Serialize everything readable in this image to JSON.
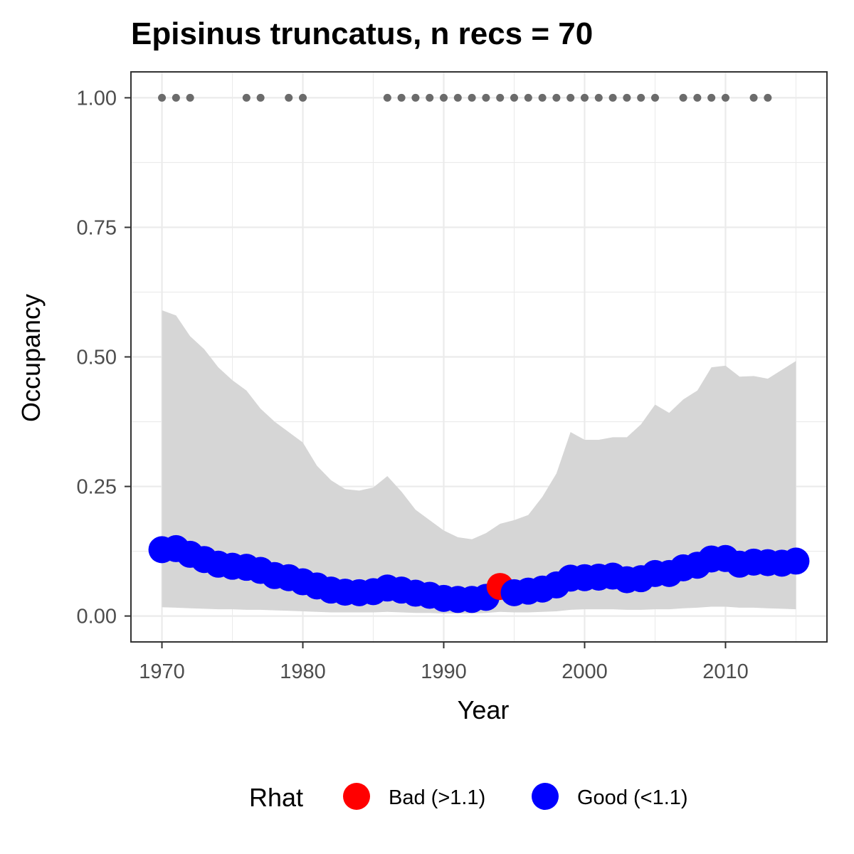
{
  "chart_data": {
    "type": "line",
    "title": "Episinus truncatus, n recs = 70",
    "xlabel": "Year",
    "ylabel": "Occupancy",
    "xlim": [
      1967.8,
      2017.2
    ],
    "ylim": [
      -0.05,
      1.05
    ],
    "x_ticks": [
      1970,
      1980,
      1990,
      2000,
      2010
    ],
    "x_tick_labels": [
      "1970",
      "1980",
      "1990",
      "2000",
      "2010"
    ],
    "y_ticks": [
      0,
      0.25,
      0.5,
      0.75,
      1.0
    ],
    "y_tick_labels": [
      "0.00",
      "0.25",
      "0.50",
      "0.75",
      "1.00"
    ],
    "grid": true,
    "legend_position": "bottom",
    "series": [
      {
        "name": "Occupancy",
        "x": [
          1970,
          1971,
          1972,
          1973,
          1974,
          1975,
          1976,
          1977,
          1978,
          1979,
          1980,
          1981,
          1982,
          1983,
          1984,
          1985,
          1986,
          1987,
          1988,
          1989,
          1990,
          1991,
          1992,
          1993,
          1994,
          1995,
          1996,
          1997,
          1998,
          1999,
          2000,
          2001,
          2002,
          2003,
          2004,
          2005,
          2006,
          2007,
          2008,
          2009,
          2010,
          2011,
          2012,
          2013,
          2014,
          2015
        ],
        "values": [
          0.128,
          0.13,
          0.119,
          0.109,
          0.1,
          0.096,
          0.094,
          0.088,
          0.078,
          0.074,
          0.066,
          0.058,
          0.05,
          0.046,
          0.045,
          0.047,
          0.054,
          0.05,
          0.044,
          0.04,
          0.034,
          0.032,
          0.032,
          0.036,
          0.057,
          0.045,
          0.048,
          0.052,
          0.06,
          0.073,
          0.074,
          0.075,
          0.077,
          0.07,
          0.072,
          0.082,
          0.082,
          0.093,
          0.098,
          0.11,
          0.111,
          0.1,
          0.104,
          0.103,
          0.102,
          0.106
        ],
        "rhat": [
          "Good",
          "Good",
          "Good",
          "Good",
          "Good",
          "Good",
          "Good",
          "Good",
          "Good",
          "Good",
          "Good",
          "Good",
          "Good",
          "Good",
          "Good",
          "Good",
          "Good",
          "Good",
          "Good",
          "Good",
          "Good",
          "Good",
          "Good",
          "Good",
          "Bad",
          "Good",
          "Good",
          "Good",
          "Good",
          "Good",
          "Good",
          "Good",
          "Good",
          "Good",
          "Good",
          "Good",
          "Good",
          "Good",
          "Good",
          "Good",
          "Good",
          "Good",
          "Good",
          "Good",
          "Good",
          "Good"
        ],
        "lower": [
          0.017,
          0.016,
          0.015,
          0.014,
          0.013,
          0.013,
          0.012,
          0.012,
          0.011,
          0.01,
          0.009,
          0.008,
          0.007,
          0.007,
          0.007,
          0.007,
          0.008,
          0.007,
          0.006,
          0.006,
          0.005,
          0.005,
          0.005,
          0.006,
          0.008,
          0.007,
          0.007,
          0.008,
          0.009,
          0.012,
          0.013,
          0.013,
          0.013,
          0.012,
          0.012,
          0.013,
          0.013,
          0.015,
          0.016,
          0.018,
          0.018,
          0.016,
          0.016,
          0.015,
          0.014,
          0.013
        ],
        "upper": [
          0.59,
          0.58,
          0.54,
          0.515,
          0.48,
          0.455,
          0.435,
          0.4,
          0.375,
          0.355,
          0.335,
          0.29,
          0.262,
          0.245,
          0.242,
          0.248,
          0.27,
          0.24,
          0.205,
          0.185,
          0.165,
          0.152,
          0.148,
          0.16,
          0.178,
          0.185,
          0.195,
          0.23,
          0.275,
          0.355,
          0.34,
          0.34,
          0.345,
          0.345,
          0.37,
          0.408,
          0.392,
          0.418,
          0.435,
          0.48,
          0.483,
          0.462,
          0.463,
          0.458,
          0.475,
          0.492
        ]
      }
    ],
    "records": {
      "name": "Records",
      "x": [
        1970,
        1971,
        1972,
        1976,
        1977,
        1979,
        1980,
        1986,
        1987,
        1988,
        1989,
        1990,
        1991,
        1992,
        1993,
        1994,
        1995,
        1996,
        1997,
        1998,
        1999,
        2000,
        2001,
        2002,
        2003,
        2004,
        2005,
        2007,
        2008,
        2009,
        2010,
        2012,
        2013
      ],
      "y": 1.0
    },
    "legend": {
      "title": "Rhat",
      "items": [
        {
          "label": "Bad (>1.1)",
          "color": "#ff0000"
        },
        {
          "label": "Good (<1.1)",
          "color": "#0000ff"
        }
      ]
    },
    "colors": {
      "bad": "#ff0000",
      "good": "#0000ff",
      "ribbon": "#d6d6d6",
      "records": "#6b6b6b",
      "grid": "#ebebeb",
      "panel_border": "#333333"
    }
  }
}
